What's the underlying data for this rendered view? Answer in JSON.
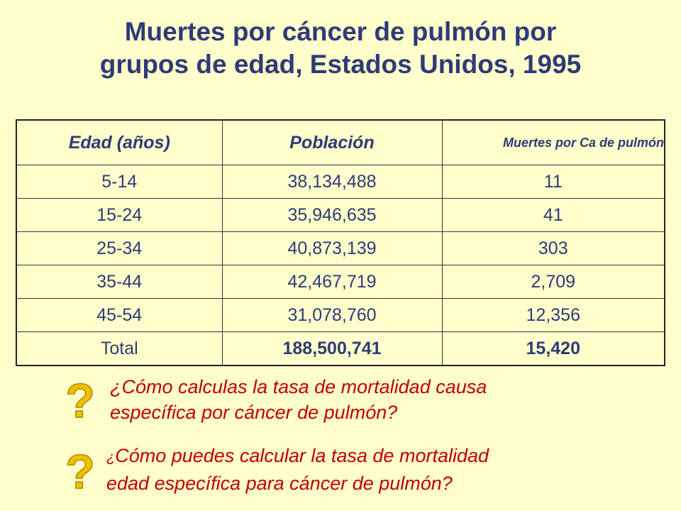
{
  "title": {
    "line1": "Muertes por cáncer de pulmón por",
    "line2": "grupos de edad, Estados Unidos, 1995"
  },
  "table": {
    "headers": [
      "Edad (años)",
      "Población",
      "Muertes por Ca de pulmón"
    ],
    "rows": [
      [
        "5-14",
        "38,134,488",
        "11"
      ],
      [
        "15-24",
        "35,946,635",
        "41"
      ],
      [
        "25-34",
        "40,873,139",
        "303"
      ],
      [
        "35-44",
        "42,467,719",
        "2,709"
      ],
      [
        "45-54",
        "31,078,760",
        "12,356"
      ]
    ],
    "total": [
      "Total",
      "188,500,741",
      "15,420"
    ]
  },
  "questions": {
    "q1": {
      "open": "¿",
      "line1": "Cómo calculas la tasa de mortalidad causa",
      "line2": "específica por cáncer de pulmón?"
    },
    "q2": {
      "open": "¿",
      "line1": "Cómo puedes calcular la tasa de mortalidad",
      "line2": "edad específica para cáncer de pulmón?"
    }
  },
  "icons": {
    "question_mark": "question-mark-icon",
    "color": "#F0C000"
  },
  "colors": {
    "background": "#FFFFCC",
    "title": "#2E3B78",
    "question": "#C00000"
  }
}
